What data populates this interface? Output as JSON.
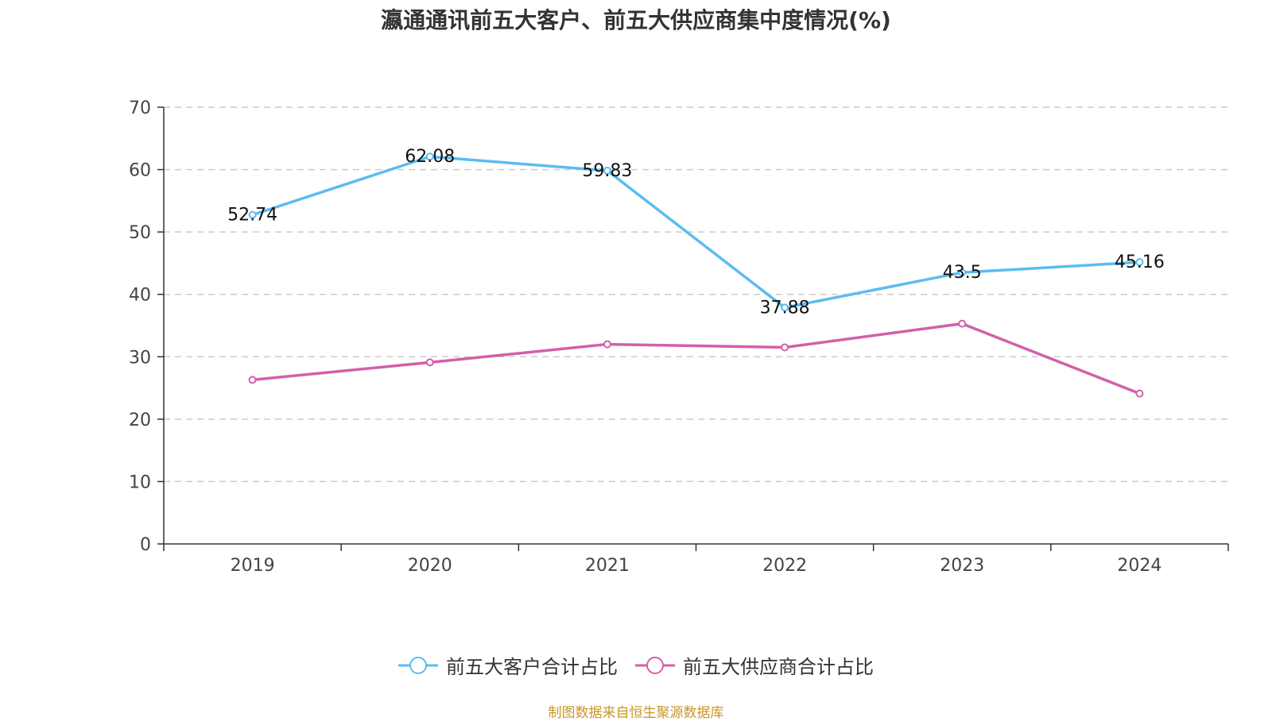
{
  "chart_data": {
    "type": "line",
    "title": "瀛通通讯前五大客户、前五大供应商集中度情况(%)",
    "categories": [
      "2019",
      "2020",
      "2021",
      "2022",
      "2023",
      "2024"
    ],
    "ylim": [
      0,
      70
    ],
    "yticks": [
      0,
      10,
      20,
      30,
      40,
      50,
      60,
      70
    ],
    "grid": true,
    "legend_position": "bottom",
    "series": [
      {
        "name": "前五大客户合计占比",
        "color": "#5bbcf0",
        "values": [
          52.74,
          62.08,
          59.83,
          37.88,
          43.5,
          45.16
        ],
        "labels": [
          "52.74",
          "62.08",
          "59.83",
          "37.88",
          "43.5",
          "45.16"
        ]
      },
      {
        "name": "前五大供应商合计占比",
        "color": "#d45fa8",
        "values": [
          26.3,
          29.1,
          32.0,
          31.5,
          35.3,
          24.1
        ],
        "labels": []
      }
    ]
  },
  "source_text": "制图数据来自恒生聚源数据库"
}
